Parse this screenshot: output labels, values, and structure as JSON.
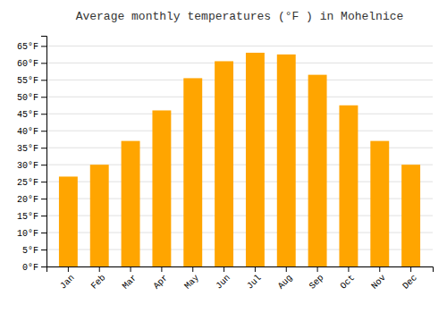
{
  "chart_data": {
    "type": "bar",
    "title": "Average monthly temperatures (°F ) in Mohelnice",
    "categories": [
      "Jan",
      "Feb",
      "Mar",
      "Apr",
      "May",
      "Jun",
      "Jul",
      "Aug",
      "Sep",
      "Oct",
      "Nov",
      "Dec"
    ],
    "values": [
      26.5,
      30.0,
      37.0,
      46.0,
      55.5,
      60.5,
      63.0,
      62.5,
      56.5,
      47.5,
      37.0,
      30.0
    ],
    "color": "#FFA500",
    "ylim": [
      0,
      68
    ],
    "yticks": [
      {
        "value": 0,
        "label": "0°F"
      },
      {
        "value": 5,
        "label": "5°F"
      },
      {
        "value": 10,
        "label": "10°F"
      },
      {
        "value": 15,
        "label": "15°F"
      },
      {
        "value": 20,
        "label": "20°F"
      },
      {
        "value": 25,
        "label": "25°F"
      },
      {
        "value": 30,
        "label": "30°F"
      },
      {
        "value": 35,
        "label": "35°F"
      },
      {
        "value": 40,
        "label": "40°F"
      },
      {
        "value": 45,
        "label": "45°F"
      },
      {
        "value": 50,
        "label": "50°F"
      },
      {
        "value": 55,
        "label": "55°F"
      },
      {
        "value": 60,
        "label": "60°F"
      },
      {
        "value": 65,
        "label": "65°F"
      }
    ],
    "grid": true
  }
}
